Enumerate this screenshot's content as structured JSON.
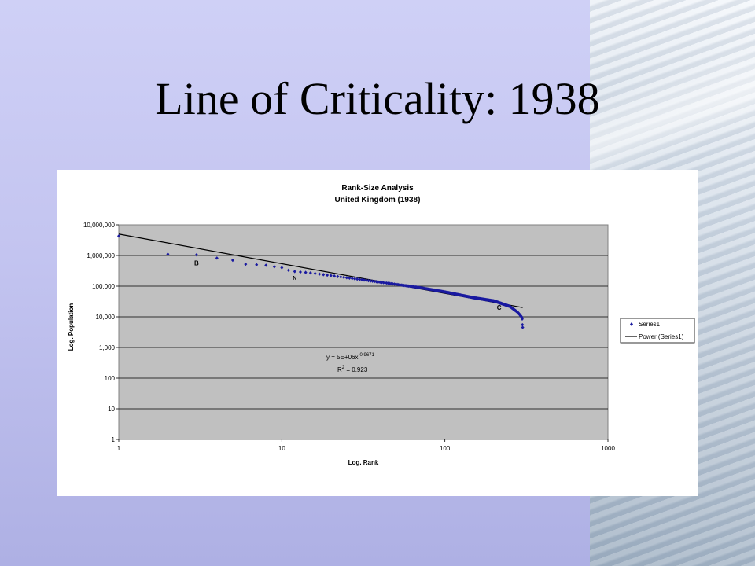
{
  "slide": {
    "title": "Line of Criticality: 1938"
  },
  "chart_data": {
    "type": "scatter",
    "title": "Rank-Size Analysis",
    "subtitle": "United Kingdom (1938)",
    "xlabel": "Log. Rank",
    "ylabel": "Log. Population",
    "x_scale": "log",
    "y_scale": "log",
    "xlim": [
      1,
      1000
    ],
    "ylim": [
      1,
      10000000
    ],
    "x_ticks": [
      "1",
      "10",
      "100",
      "1000"
    ],
    "y_ticks": [
      "1",
      "10",
      "100",
      "1,000",
      "10,000",
      "100,000",
      "1,000,000",
      "10,000,000"
    ],
    "grid": "horizontal",
    "legend_position": "right",
    "series": [
      {
        "name": "Series1",
        "color": "#1a1aa0",
        "marker": "diamond",
        "rank_range": [
          1,
          300
        ],
        "points_sampled": [
          {
            "x": 1,
            "y": 4300000
          },
          {
            "x": 2,
            "y": 1100000
          },
          {
            "x": 3,
            "y": 1050000
          },
          {
            "x": 4,
            "y": 820000
          },
          {
            "x": 5,
            "y": 700000
          },
          {
            "x": 6,
            "y": 520000
          },
          {
            "x": 7,
            "y": 500000
          },
          {
            "x": 8,
            "y": 480000
          },
          {
            "x": 9,
            "y": 430000
          },
          {
            "x": 10,
            "y": 400000
          },
          {
            "x": 11,
            "y": 330000
          },
          {
            "x": 12,
            "y": 300000
          },
          {
            "x": 15,
            "y": 270000
          },
          {
            "x": 20,
            "y": 220000
          },
          {
            "x": 30,
            "y": 165000
          },
          {
            "x": 50,
            "y": 115000
          },
          {
            "x": 70,
            "y": 90000
          },
          {
            "x": 100,
            "y": 65000
          },
          {
            "x": 150,
            "y": 42000
          },
          {
            "x": 200,
            "y": 33000
          },
          {
            "x": 250,
            "y": 22000
          },
          {
            "x": 280,
            "y": 14000
          },
          {
            "x": 295,
            "y": 10000
          },
          {
            "x": 298,
            "y": 8500
          },
          {
            "x": 299,
            "y": 5500
          },
          {
            "x": 300,
            "y": 4500
          }
        ]
      },
      {
        "name": "Power (Series1)",
        "color": "#000000",
        "type": "line",
        "coefficient": 5000000,
        "exponent": -0.9671,
        "x_range": [
          1,
          300
        ]
      }
    ],
    "annotations": {
      "equation_prefix": "y = 5E+06x",
      "equation_exponent": "-0.9671",
      "r2_prefix": "R",
      "r2_superscript": "2",
      "r2_value": " = 0.923",
      "markers": [
        {
          "text": "B",
          "x": 3,
          "y": 480000,
          "color": "#e01010"
        },
        {
          "text": "N",
          "x": 12,
          "y": 160000,
          "color": "#ffff66"
        },
        {
          "text": "C",
          "x": 215,
          "y": 17000,
          "color": "#2030d0"
        }
      ]
    }
  }
}
